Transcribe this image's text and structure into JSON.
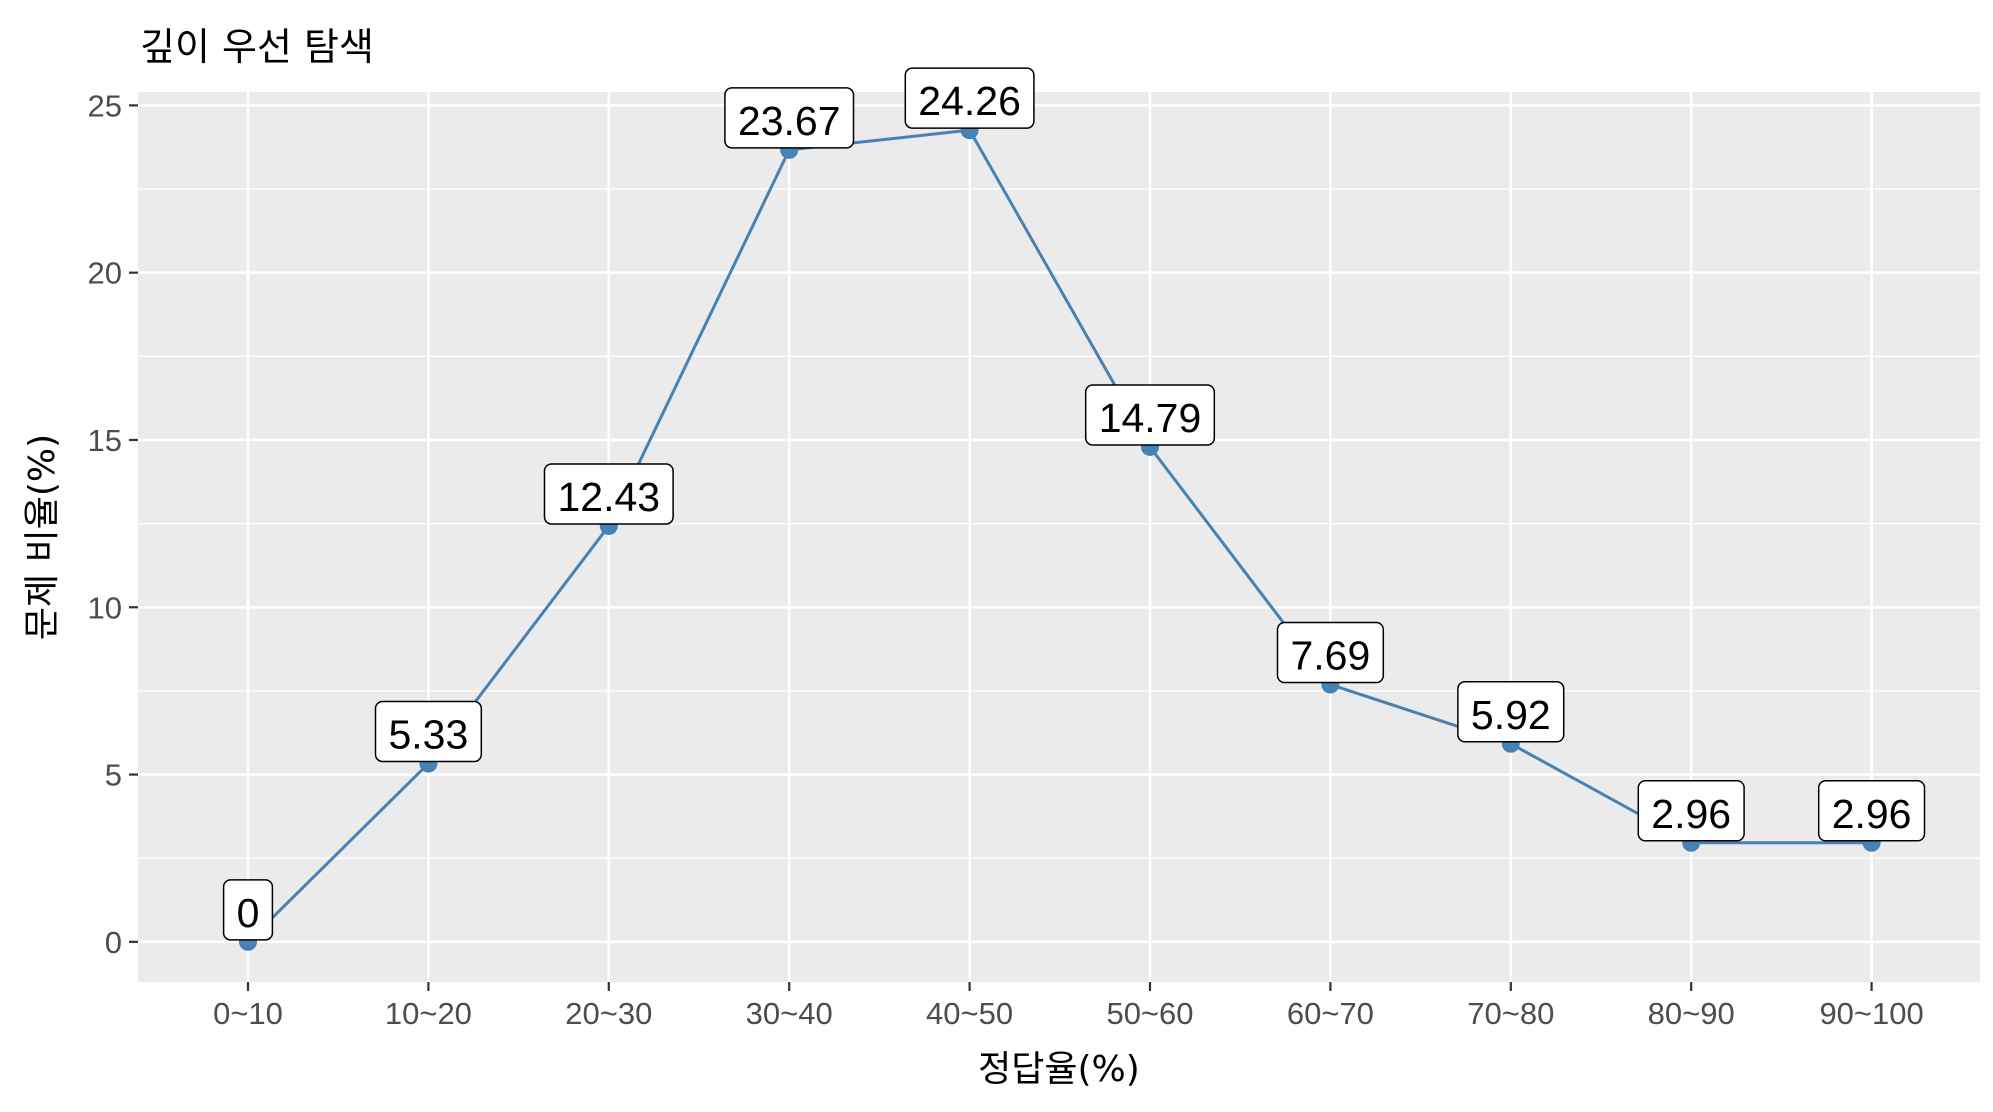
{
  "chart_data": {
    "type": "line",
    "title": "깊이 우선 탐색",
    "xlabel": "정답율(%)",
    "ylabel": "문제 비율(%)",
    "categories": [
      "0~10",
      "10~20",
      "20~30",
      "30~40",
      "40~50",
      "50~60",
      "60~70",
      "70~80",
      "80~90",
      "90~100"
    ],
    "values": [
      0,
      5.33,
      12.43,
      23.67,
      24.26,
      14.79,
      7.69,
      5.92,
      2.96,
      2.96
    ],
    "data_labels": [
      "0",
      "5.33",
      "12.43",
      "23.67",
      "24.26",
      "14.79",
      "7.69",
      "5.92",
      "2.96",
      "2.96"
    ],
    "yticks": [
      0,
      5,
      10,
      15,
      20,
      25
    ],
    "ylim": [
      -1.2,
      25.4
    ],
    "grid": true,
    "legend": "none",
    "colors": {
      "line": "#4682b4",
      "panel": "#ebebeb",
      "grid": "#ffffff"
    }
  }
}
